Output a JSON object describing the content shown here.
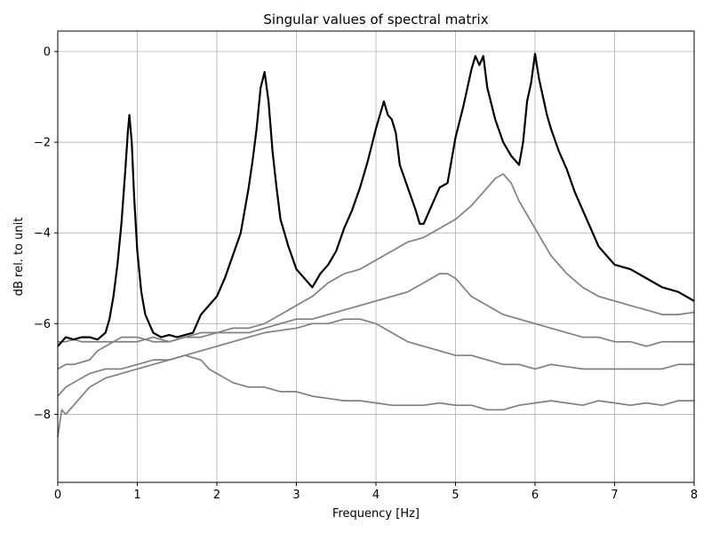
{
  "chart_data": {
    "type": "line",
    "title": "Singular values of spectral matrix",
    "xlabel": "Frequency [Hz]",
    "ylabel": "dB rel. to unit",
    "xlim": [
      0,
      8
    ],
    "ylim": [
      -9.5,
      0.45
    ],
    "xticks": [
      0,
      1,
      2,
      3,
      4,
      5,
      6,
      7,
      8
    ],
    "yticks": [
      0,
      -2,
      -4,
      -6,
      -8
    ],
    "xtick_labels": [
      "0",
      "1",
      "2",
      "3",
      "4",
      "5",
      "6",
      "7",
      "8"
    ],
    "ytick_labels": [
      "0",
      "−2",
      "−4",
      "−6",
      "−8"
    ],
    "grid": true,
    "series": [
      {
        "color": "#000000",
        "x": [
          0,
          0.1,
          0.2,
          0.3,
          0.4,
          0.5,
          0.6,
          0.65,
          0.7,
          0.75,
          0.8,
          0.85,
          0.88,
          0.9,
          0.93,
          0.96,
          1.0,
          1.05,
          1.1,
          1.2,
          1.3,
          1.4,
          1.5,
          1.6,
          1.7,
          1.8,
          1.9,
          2.0,
          2.1,
          2.2,
          2.3,
          2.4,
          2.45,
          2.5,
          2.55,
          2.6,
          2.65,
          2.7,
          2.75,
          2.8,
          2.9,
          3.0,
          3.1,
          3.2,
          3.3,
          3.4,
          3.5,
          3.6,
          3.7,
          3.8,
          3.9,
          4.0,
          4.05,
          4.1,
          4.15,
          4.2,
          4.25,
          4.3,
          4.4,
          4.5,
          4.55,
          4.6,
          4.7,
          4.8,
          4.9,
          5.0,
          5.1,
          5.2,
          5.25,
          5.3,
          5.35,
          5.4,
          5.5,
          5.6,
          5.7,
          5.8,
          5.85,
          5.9,
          5.95,
          6.0,
          6.05,
          6.1,
          6.15,
          6.2,
          6.3,
          6.4,
          6.5,
          6.6,
          6.7,
          6.8,
          6.9,
          7.0,
          7.2,
          7.4,
          7.6,
          7.8,
          8.0
        ],
        "y": [
          -6.5,
          -6.3,
          -6.35,
          -6.3,
          -6.3,
          -6.35,
          -6.2,
          -5.9,
          -5.4,
          -4.7,
          -3.8,
          -2.6,
          -1.8,
          -1.4,
          -2.0,
          -3.2,
          -4.4,
          -5.3,
          -5.8,
          -6.2,
          -6.3,
          -6.25,
          -6.3,
          -6.25,
          -6.2,
          -5.8,
          -5.6,
          -5.4,
          -5.0,
          -4.5,
          -4.0,
          -3.0,
          -2.4,
          -1.7,
          -0.8,
          -0.45,
          -1.1,
          -2.2,
          -3.0,
          -3.7,
          -4.3,
          -4.8,
          -5.0,
          -5.2,
          -4.9,
          -4.7,
          -4.4,
          -3.9,
          -3.5,
          -3.0,
          -2.4,
          -1.7,
          -1.4,
          -1.1,
          -1.4,
          -1.5,
          -1.8,
          -2.5,
          -3.0,
          -3.5,
          -3.8,
          -3.8,
          -3.4,
          -3.0,
          -2.9,
          -1.9,
          -1.2,
          -0.4,
          -0.1,
          -0.3,
          -0.1,
          -0.8,
          -1.5,
          -2.0,
          -2.3,
          -2.5,
          -2.0,
          -1.1,
          -0.7,
          -0.05,
          -0.6,
          -1.0,
          -1.4,
          -1.7,
          -2.2,
          -2.6,
          -3.1,
          -3.5,
          -3.9,
          -4.3,
          -4.5,
          -4.7,
          -4.8,
          -5.0,
          -5.2,
          -5.3,
          -5.5
        ]
      },
      {
        "color": "#808080",
        "x": [
          0,
          0.1,
          0.2,
          0.3,
          0.4,
          0.5,
          0.6,
          0.7,
          0.8,
          0.9,
          1.0,
          1.2,
          1.4,
          1.6,
          1.8,
          2.0,
          2.2,
          2.4,
          2.6,
          2.8,
          3.0,
          3.2,
          3.4,
          3.6,
          3.8,
          4.0,
          4.2,
          4.4,
          4.6,
          4.8,
          5.0,
          5.2,
          5.4,
          5.5,
          5.6,
          5.7,
          5.8,
          6.0,
          6.2,
          6.4,
          6.6,
          6.8,
          7.0,
          7.2,
          7.4,
          7.6,
          7.8,
          8.0
        ],
        "y": [
          -6.4,
          -6.4,
          -6.35,
          -6.4,
          -6.4,
          -6.4,
          -6.4,
          -6.4,
          -6.3,
          -6.3,
          -6.3,
          -6.4,
          -6.4,
          -6.3,
          -6.2,
          -6.2,
          -6.1,
          -6.1,
          -6.0,
          -5.8,
          -5.6,
          -5.4,
          -5.1,
          -4.9,
          -4.8,
          -4.6,
          -4.4,
          -4.2,
          -4.1,
          -3.9,
          -3.7,
          -3.4,
          -3.0,
          -2.8,
          -2.7,
          -2.9,
          -3.3,
          -3.9,
          -4.5,
          -4.9,
          -5.2,
          -5.4,
          -5.5,
          -5.6,
          -5.7,
          -5.8,
          -5.8,
          -5.75
        ]
      },
      {
        "color": "#808080",
        "x": [
          0,
          0.1,
          0.2,
          0.3,
          0.4,
          0.5,
          0.6,
          0.7,
          0.8,
          1.0,
          1.2,
          1.4,
          1.6,
          1.8,
          2.0,
          2.2,
          2.4,
          2.6,
          2.8,
          3.0,
          3.2,
          3.4,
          3.6,
          3.8,
          4.0,
          4.2,
          4.4,
          4.6,
          4.7,
          4.8,
          4.9,
          5.0,
          5.2,
          5.4,
          5.6,
          5.8,
          6.0,
          6.2,
          6.4,
          6.6,
          6.8,
          7.0,
          7.2,
          7.4,
          7.6,
          7.8,
          8.0
        ],
        "y": [
          -7.0,
          -6.9,
          -6.9,
          -6.85,
          -6.8,
          -6.6,
          -6.5,
          -6.4,
          -6.4,
          -6.4,
          -6.3,
          -6.4,
          -6.3,
          -6.3,
          -6.2,
          -6.2,
          -6.2,
          -6.1,
          -6.0,
          -5.9,
          -5.9,
          -5.8,
          -5.7,
          -5.6,
          -5.5,
          -5.4,
          -5.3,
          -5.1,
          -5.0,
          -4.9,
          -4.9,
          -5.0,
          -5.4,
          -5.6,
          -5.8,
          -5.9,
          -6.0,
          -6.1,
          -6.2,
          -6.3,
          -6.3,
          -6.4,
          -6.4,
          -6.5,
          -6.4,
          -6.4,
          -6.4
        ]
      },
      {
        "color": "#808080",
        "x": [
          0,
          0.1,
          0.2,
          0.3,
          0.4,
          0.5,
          0.6,
          0.8,
          1.0,
          1.2,
          1.4,
          1.6,
          1.8,
          2.0,
          2.2,
          2.4,
          2.6,
          2.8,
          3.0,
          3.2,
          3.4,
          3.6,
          3.8,
          4.0,
          4.2,
          4.4,
          4.6,
          4.8,
          5.0,
          5.2,
          5.4,
          5.6,
          5.8,
          6.0,
          6.2,
          6.4,
          6.6,
          6.8,
          7.0,
          7.2,
          7.4,
          7.6,
          7.8,
          8.0
        ],
        "y": [
          -7.6,
          -7.4,
          -7.3,
          -7.2,
          -7.1,
          -7.05,
          -7.0,
          -7.0,
          -6.9,
          -6.8,
          -6.8,
          -6.7,
          -6.6,
          -6.5,
          -6.4,
          -6.3,
          -6.2,
          -6.15,
          -6.1,
          -6.0,
          -6.0,
          -5.9,
          -5.9,
          -6.0,
          -6.2,
          -6.4,
          -6.5,
          -6.6,
          -6.7,
          -6.7,
          -6.8,
          -6.9,
          -6.9,
          -7.0,
          -6.9,
          -6.95,
          -7.0,
          -7.0,
          -7.0,
          -7.0,
          -7.0,
          -7.0,
          -6.9,
          -6.9
        ]
      },
      {
        "color": "#808080",
        "x": [
          0,
          0.05,
          0.1,
          0.15,
          0.2,
          0.3,
          0.4,
          0.5,
          0.6,
          0.8,
          1.0,
          1.2,
          1.4,
          1.6,
          1.8,
          1.9,
          2.0,
          2.2,
          2.4,
          2.6,
          2.8,
          3.0,
          3.2,
          3.4,
          3.6,
          3.8,
          4.0,
          4.2,
          4.4,
          4.6,
          4.8,
          5.0,
          5.2,
          5.4,
          5.6,
          5.8,
          6.0,
          6.2,
          6.4,
          6.6,
          6.8,
          7.0,
          7.2,
          7.4,
          7.6,
          7.8,
          8.0
        ],
        "y": [
          -8.5,
          -7.9,
          -8.0,
          -7.9,
          -7.8,
          -7.6,
          -7.4,
          -7.3,
          -7.2,
          -7.1,
          -7.0,
          -6.9,
          -6.8,
          -6.7,
          -6.8,
          -7.0,
          -7.1,
          -7.3,
          -7.4,
          -7.4,
          -7.5,
          -7.5,
          -7.6,
          -7.65,
          -7.7,
          -7.7,
          -7.75,
          -7.8,
          -7.8,
          -7.8,
          -7.75,
          -7.8,
          -7.8,
          -7.9,
          -7.9,
          -7.8,
          -7.75,
          -7.7,
          -7.75,
          -7.8,
          -7.7,
          -7.75,
          -7.8,
          -7.75,
          -7.8,
          -7.7,
          -7.7
        ]
      }
    ]
  }
}
